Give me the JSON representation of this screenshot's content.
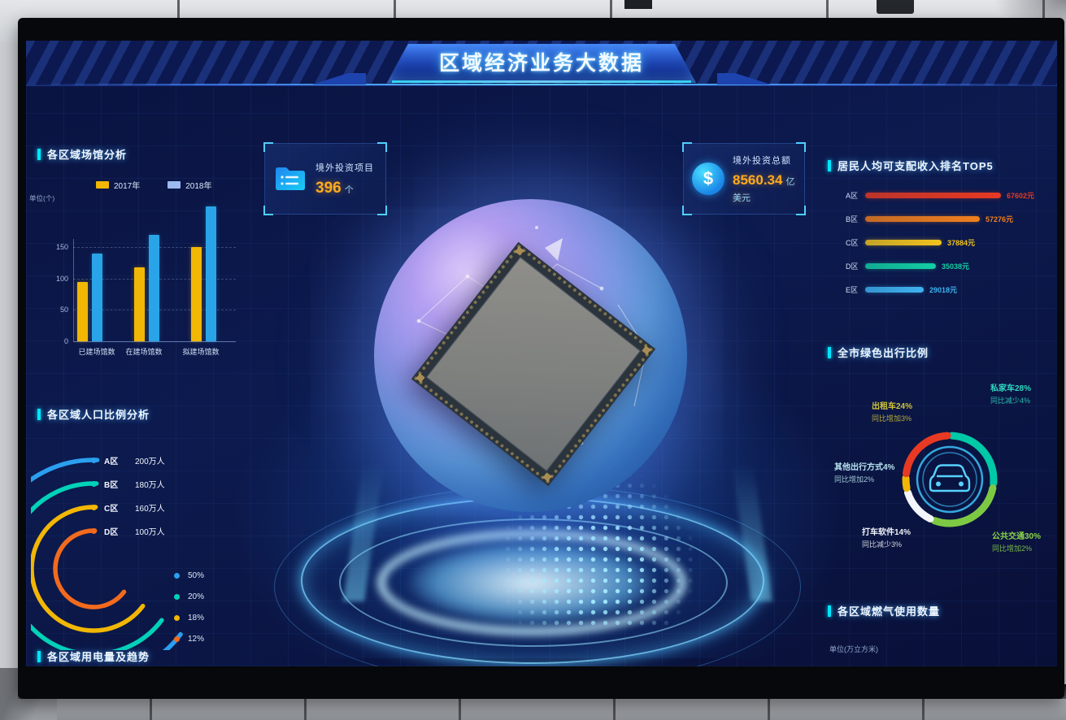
{
  "header": {
    "title": "区域经济业务大数据"
  },
  "stat_cards": [
    {
      "icon": "folder-icon",
      "label": "境外投资项目",
      "value": "396",
      "unit": "个"
    },
    {
      "icon": "dollar-icon",
      "label": "境外投资总额",
      "value": "8560.34",
      "unit": "亿美元"
    }
  ],
  "panels": {
    "venues": {
      "title": "各区域场馆分析",
      "unit": "单位(个)"
    },
    "population": {
      "title": "各区域人口比例分析"
    },
    "electricity": {
      "title": "各区域用电量及趋势"
    },
    "income": {
      "title": "居民人均可支配收入排名TOP5"
    },
    "travel": {
      "title": "全市绿色出行比例"
    },
    "gas": {
      "title": "各区域燃气使用数量",
      "unit": "单位(万立方米)"
    }
  },
  "chart_data": [
    {
      "id": "venues",
      "type": "bar",
      "title": "各区域场馆分析",
      "unit": "单位(个)",
      "categories": [
        "已建场馆数",
        "在建场馆数",
        "拟建场馆数"
      ],
      "series": [
        {
          "name": "2017年",
          "color": "#f2b705",
          "values": [
            95,
            118,
            150
          ]
        },
        {
          "name": "2018年",
          "color": "#2aa4e8",
          "values": [
            140,
            170,
            215
          ]
        }
      ],
      "yticks": [
        0,
        50,
        100,
        150
      ],
      "ylim": [
        0,
        215
      ],
      "grid": "dashed",
      "legend_position": "top"
    },
    {
      "id": "population",
      "type": "radial-bar",
      "title": "各区域人口比例分析",
      "items": [
        {
          "label": "A区",
          "value_text": "200万人",
          "percent": "50%",
          "color": "#2b9ff0"
        },
        {
          "label": "B区",
          "value_text": "180万人",
          "percent": "20%",
          "color": "#00d2b8"
        },
        {
          "label": "C区",
          "value_text": "160万人",
          "percent": "18%",
          "color": "#f2b705"
        },
        {
          "label": "D区",
          "value_text": "100万人",
          "percent": "12%",
          "color": "#f26a1e"
        }
      ]
    },
    {
      "id": "income",
      "type": "hbar",
      "title": "居民人均可支配收入排名TOP5",
      "items": [
        {
          "label": "A区",
          "value": 67602,
          "value_text": "67602元",
          "color": "#e83a22"
        },
        {
          "label": "B区",
          "value": 57276,
          "value_text": "57276元",
          "color": "#f07f1e"
        },
        {
          "label": "C区",
          "value": 37884,
          "value_text": "37884元",
          "color": "#f2c41d"
        },
        {
          "label": "D区",
          "value": 35038,
          "value_text": "35038元",
          "color": "#13cfa4"
        },
        {
          "label": "E区",
          "value": 29018,
          "value_text": "29018元",
          "color": "#3fb3f0"
        }
      ]
    },
    {
      "id": "travel",
      "type": "pie",
      "title": "全市绿色出行比例",
      "center_icon": "car-icon",
      "slices": [
        {
          "name": "私家车",
          "pct": 28,
          "label": "私家车28%",
          "yoy": "同比减少4%",
          "color": "#00c9a7",
          "label_color": "#2fd8c0"
        },
        {
          "name": "公共交通",
          "pct": 30,
          "label": "公共交通30%",
          "yoy": "同比增加2%",
          "color": "#7ec943",
          "label_color": "#8bd44a"
        },
        {
          "name": "打车软件",
          "pct": 14,
          "label": "打车软件14%",
          "yoy": "同比减少3%",
          "color": "#f2f6fa",
          "label_color": "#eef2f7"
        },
        {
          "name": "其他出行方式",
          "pct": 4,
          "label": "其他出行方式4%",
          "yoy": "同比增加2%",
          "color": "#f2b705",
          "label_color": "#b8e4f0"
        },
        {
          "name": "出租车",
          "pct": 24,
          "label": "出租车24%",
          "yoy": "同比增加3%",
          "color": "#e83a22",
          "label_color": "#cfc238"
        }
      ]
    }
  ]
}
